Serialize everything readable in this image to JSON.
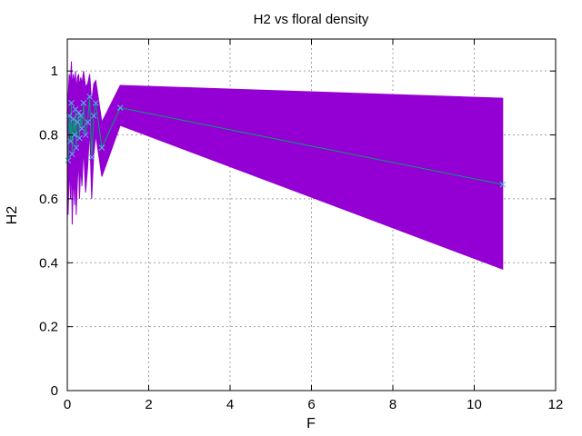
{
  "chart_data": {
    "type": "line",
    "title": "H2 vs floral density",
    "xlabel": "F",
    "ylabel": "H2",
    "xlim": [
      0,
      12
    ],
    "ylim": [
      0,
      1.1
    ],
    "x_ticks": [
      0,
      2,
      4,
      6,
      8,
      10,
      12
    ],
    "y_ticks": [
      0,
      0.2,
      0.4,
      0.6,
      0.8,
      1
    ],
    "grid": true,
    "legend": "none",
    "colors": {
      "band": "#9400d3",
      "line": "#009e73",
      "marker": "#56b4e9"
    },
    "series": [
      {
        "style": "line-with-x-markers",
        "x": [
          0.02,
          0.05,
          0.08,
          0.1,
          0.12,
          0.15,
          0.18,
          0.2,
          0.22,
          0.25,
          0.28,
          0.3,
          0.33,
          0.36,
          0.4,
          0.45,
          0.5,
          0.55,
          0.6,
          0.65,
          0.7,
          0.85,
          1.3,
          10.7
        ],
        "y": [
          0.72,
          0.86,
          0.78,
          0.9,
          0.74,
          0.85,
          0.8,
          0.88,
          0.76,
          0.84,
          0.87,
          0.79,
          0.86,
          0.82,
          0.9,
          0.8,
          0.84,
          0.92,
          0.73,
          0.86,
          0.9,
          0.76,
          0.885,
          0.645
        ],
        "upper": [
          0.92,
          0.99,
          0.97,
          1.03,
          0.95,
          0.99,
          0.96,
          1.0,
          0.94,
          0.98,
          0.99,
          0.95,
          0.98,
          0.96,
          1.0,
          0.95,
          0.96,
          0.99,
          0.9,
          0.96,
          0.97,
          0.84,
          0.955,
          0.915
        ],
        "lower": [
          0.55,
          0.7,
          0.6,
          0.75,
          0.52,
          0.68,
          0.58,
          0.74,
          0.55,
          0.66,
          0.72,
          0.6,
          0.7,
          0.64,
          0.76,
          0.62,
          0.7,
          0.82,
          0.6,
          0.74,
          0.8,
          0.67,
          0.83,
          0.38
        ]
      }
    ]
  }
}
